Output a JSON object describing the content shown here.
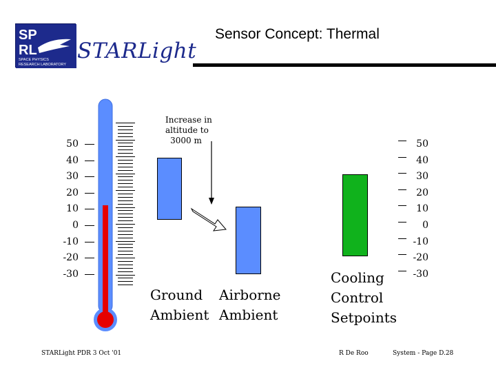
{
  "header": {
    "logo_text": "SPRL",
    "logo_subtext_line1": "SPACE PHYSICS",
    "logo_subtext_line2": "RESEARCH LABORATORY",
    "brand": "STARLight",
    "title": "Sensor Concept:  Thermal"
  },
  "left_scale": [
    "50",
    "40",
    "30",
    "20",
    "10",
    "0",
    "-10",
    "-20",
    "-30"
  ],
  "right_scale": [
    "50",
    "40",
    "30",
    "20",
    "10",
    "0",
    "-10",
    "-20",
    "-30"
  ],
  "annotation": {
    "line1": "Increase in",
    "line2": "altitude to",
    "line3": "3000 m"
  },
  "labels": {
    "ground_line1": "Ground",
    "ground_line2": "Ambient",
    "airborne_line1": "Airborne",
    "airborne_line2": "Ambient",
    "cooling_line1": "Cooling",
    "cooling_line2": "Control",
    "cooling_line3": "Setpoints"
  },
  "footer": {
    "left": "STARLight PDR  3 Oct '01",
    "center": "R De Roo",
    "right": "System - Page D.28"
  },
  "colors": {
    "brand": "#1d2a8c",
    "thermometer_tube": "#5b8dff",
    "mercury": "#e60000",
    "ambient_bar": "#5b8dff",
    "cooling_bar": "#10b21c"
  }
}
